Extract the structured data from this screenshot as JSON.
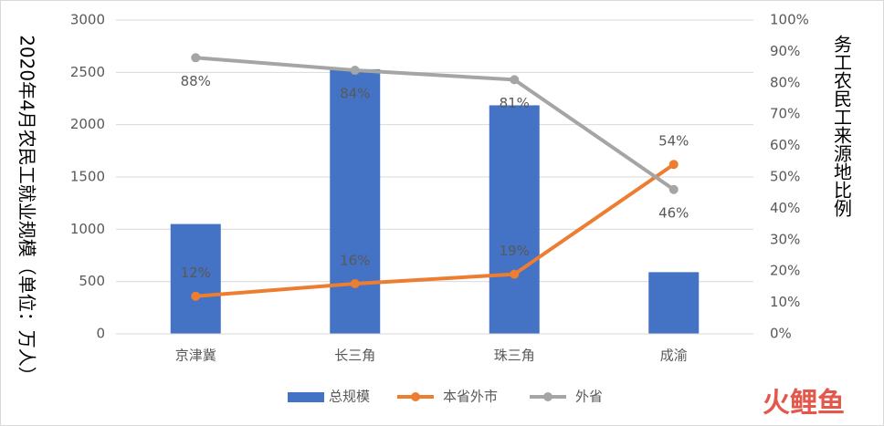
{
  "chart_data": {
    "type": "bar-line",
    "categories": [
      "京津冀",
      "长三角",
      "珠三角",
      "成渝"
    ],
    "y_label": "2020年4月农民工就业规模（单位：万人）",
    "y2_label": "务工农民工来源地比例",
    "ylim": [
      0,
      3000
    ],
    "yticks": [
      0,
      500,
      1000,
      1500,
      2000,
      2500,
      3000
    ],
    "y2lim": [
      0,
      100
    ],
    "y2ticks": [
      {
        "value": 0,
        "label": "0%"
      },
      {
        "value": 10,
        "label": "10%"
      },
      {
        "value": 20,
        "label": "20%"
      },
      {
        "value": 30,
        "label": "30%"
      },
      {
        "value": 40,
        "label": "40%"
      },
      {
        "value": 50,
        "label": "50%"
      },
      {
        "value": 60,
        "label": "60%"
      },
      {
        "value": 70,
        "label": "70%"
      },
      {
        "value": 80,
        "label": "80%"
      },
      {
        "value": 90,
        "label": "90%"
      },
      {
        "value": 100,
        "label": "100%"
      }
    ],
    "grid": true,
    "legend": "bottom",
    "series": [
      {
        "name": "总规模",
        "type": "bar",
        "color": "#4472c4",
        "values": [
          1050,
          2530,
          2185,
          590
        ]
      },
      {
        "name": "本省外市",
        "type": "line",
        "axis": "y2",
        "color": "#ed7d31",
        "values": [
          12,
          16,
          19,
          54
        ],
        "value_labels": [
          "12%",
          "16%",
          "19%",
          "54%"
        ]
      },
      {
        "name": "外省",
        "type": "line",
        "axis": "y2",
        "color": "#a5a5a5",
        "values": [
          88,
          84,
          81,
          46
        ],
        "value_labels": [
          "88%",
          "84%",
          "81%",
          "46%"
        ]
      }
    ],
    "watermark": "火鲤鱼"
  }
}
